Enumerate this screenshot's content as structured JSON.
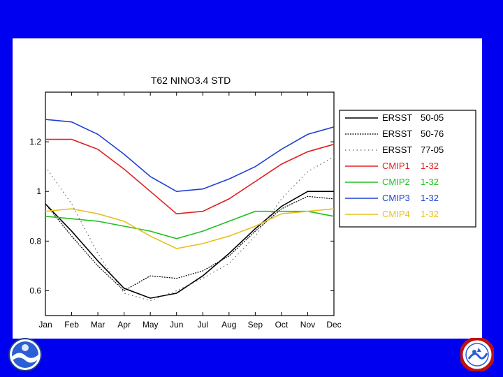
{
  "colors": {
    "background": "#0000f0",
    "panel": "#ffffff"
  },
  "logos": {
    "left": {
      "name": "noaa-logo",
      "text": "NOAA"
    },
    "right": {
      "name": "nws-logo",
      "text": "NATIONAL WEATHER SERVICE"
    }
  },
  "chart_data": {
    "type": "line",
    "title": "T62 NINO3.4 STD",
    "xlabel": "",
    "ylabel": "",
    "categories": [
      "Jan",
      "Feb",
      "Mar",
      "Apr",
      "May",
      "Jun",
      "Jul",
      "Aug",
      "Sep",
      "Oct",
      "Nov",
      "Dec"
    ],
    "ylim": [
      0.5,
      1.4
    ],
    "yticks": [
      0.6,
      0.8,
      1,
      1.2
    ],
    "ytick_labels": [
      "0.6",
      "0.8",
      "1",
      "1.2"
    ],
    "legend_position": "right",
    "series": [
      {
        "name": "ERSST",
        "period": "50-05",
        "color": "#000000",
        "dash": "solid",
        "values": [
          0.95,
          0.84,
          0.72,
          0.61,
          0.57,
          0.59,
          0.66,
          0.75,
          0.85,
          0.94,
          1.0,
          1.0
        ]
      },
      {
        "name": "ERSST",
        "period": "50-76",
        "color": "#000000",
        "dash": "densedot",
        "values": [
          0.95,
          0.82,
          0.7,
          0.6,
          0.66,
          0.65,
          0.68,
          0.74,
          0.84,
          0.93,
          0.98,
          0.97
        ]
      },
      {
        "name": "ERSST",
        "period": "77-05",
        "color": "#666666",
        "dash": "sparsedot",
        "values": [
          1.1,
          0.95,
          0.75,
          0.59,
          0.56,
          0.6,
          0.65,
          0.71,
          0.82,
          0.97,
          1.08,
          1.14
        ]
      },
      {
        "name": "CMIP1",
        "period": "1-32",
        "color": "#e02020",
        "dash": "solid",
        "values": [
          1.21,
          1.21,
          1.17,
          1.09,
          1.0,
          0.91,
          0.92,
          0.97,
          1.04,
          1.11,
          1.16,
          1.19
        ]
      },
      {
        "name": "CMIP2",
        "period": "1-32",
        "color": "#20c020",
        "dash": "solid",
        "values": [
          0.9,
          0.89,
          0.88,
          0.86,
          0.84,
          0.81,
          0.84,
          0.88,
          0.92,
          0.92,
          0.92,
          0.9
        ]
      },
      {
        "name": "CMIP3",
        "period": "1-32",
        "color": "#2040d0",
        "dash": "solid",
        "values": [
          1.29,
          1.28,
          1.23,
          1.15,
          1.06,
          1.0,
          1.01,
          1.05,
          1.1,
          1.17,
          1.23,
          1.26
        ]
      },
      {
        "name": "CMIP4",
        "period": "1-32",
        "color": "#e8c020",
        "dash": "solid",
        "values": [
          0.92,
          0.93,
          0.91,
          0.88,
          0.82,
          0.77,
          0.79,
          0.82,
          0.86,
          0.91,
          0.92,
          0.93
        ]
      }
    ]
  }
}
